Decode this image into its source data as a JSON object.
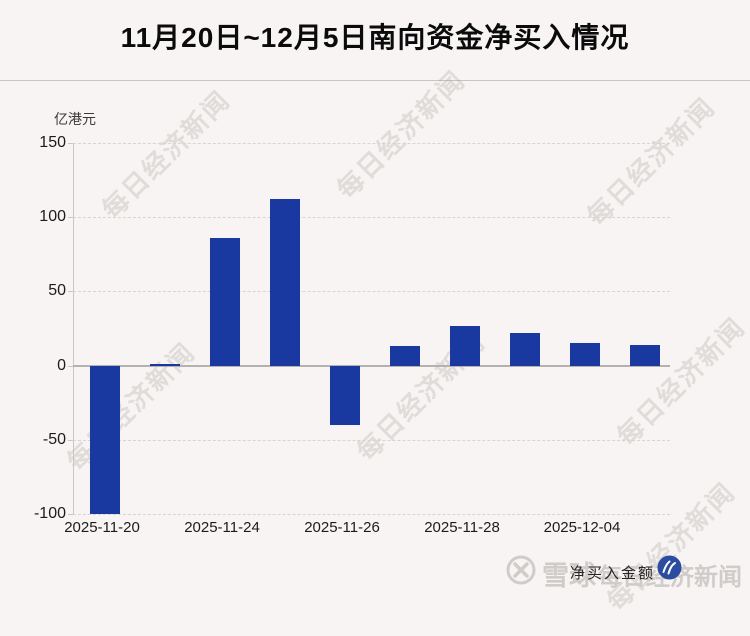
{
  "title": "11月20日~12月5日南向资金净买入情况",
  "chart_data": {
    "type": "bar",
    "title": "11月20日~12月5日南向资金净买入情况",
    "ylabel": "亿港元",
    "unit_label": "亿港元",
    "y_ticks": [
      150,
      100,
      50,
      0,
      -50,
      -100
    ],
    "ylim": [
      -100,
      150
    ],
    "grid": "horizontal dashed gridlines, solid zero line",
    "legend_position": "bottom-right",
    "values": [
      -100,
      1,
      86,
      112,
      -40,
      13,
      27,
      22,
      15,
      14
    ],
    "x_tick_labels": [
      "2025-11-20",
      "2025-11-24",
      "2025-11-26",
      "2025-11-28",
      "2025-12-04"
    ],
    "x_tick_bar_index": [
      0,
      2,
      4,
      6,
      8
    ],
    "series_name": "净买入金额",
    "bar_color": "#1a39a0"
  },
  "legend": {
    "label": "净买入金额",
    "logo_color": "#2b4c9f"
  },
  "watermark": {
    "diagonal_text": "每日经济新闻",
    "xueqiu_text": "雪球",
    "nbd_text": "每日经济新闻"
  }
}
